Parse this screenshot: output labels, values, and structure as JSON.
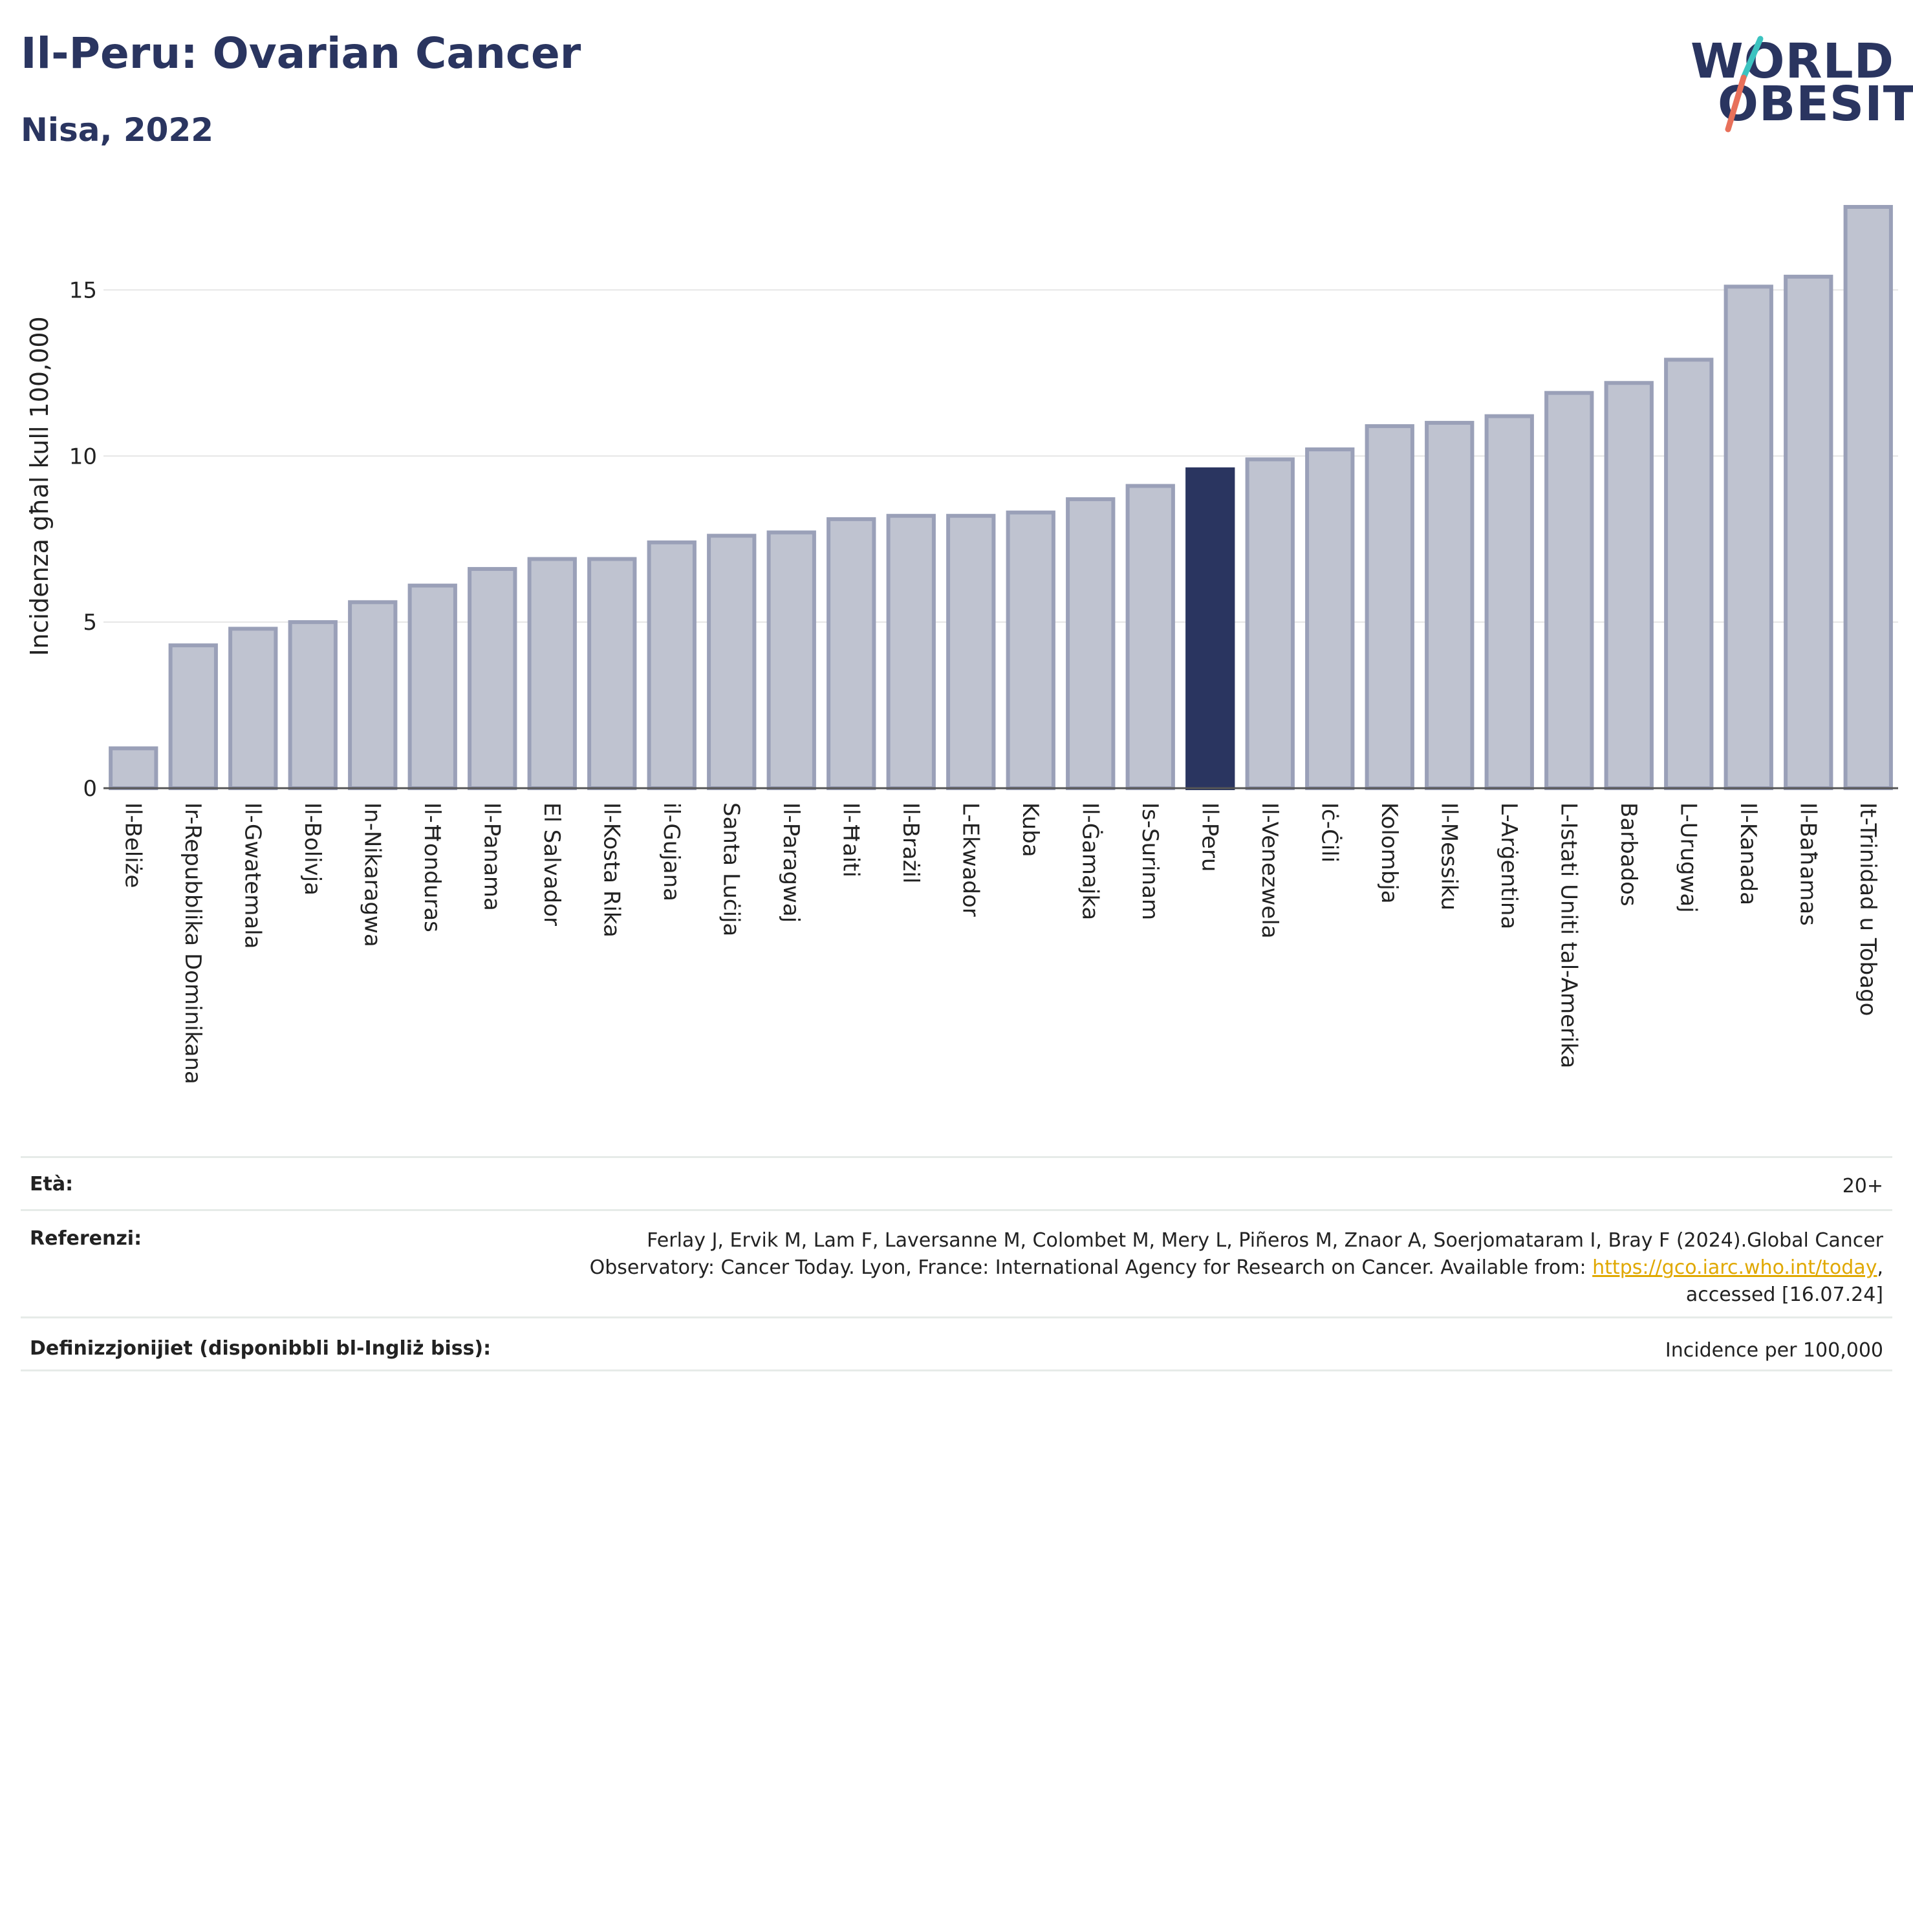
{
  "header": {
    "title": "Il-Peru: Ovarian Cancer",
    "subtitle": "Nisa, 2022"
  },
  "logo": {
    "line1": "WORLD",
    "line2": "OBESITY",
    "slash_colors": [
      "#3cc3c0",
      "#e8705a"
    ]
  },
  "colors": {
    "bar": "#bfc3d0",
    "bar_border": "#9aa0b8",
    "highlight": "#2a3560",
    "text": "#2a3560",
    "link": "#e0a800"
  },
  "chart_data": {
    "type": "bar",
    "ylabel": "Incidenza għal kull 100,000",
    "ylim": [
      0,
      17.5
    ],
    "yticks": [
      0,
      5,
      10,
      15
    ],
    "grid": true,
    "highlight": "Il-Peru",
    "categories": [
      "Il-Beliże",
      "Ir-Repubblika Dominikana",
      "Il-Gwatemala",
      "Il-Bolivja",
      "In-Nikaragwa",
      "Il-Ħonduras",
      "Il-Panama",
      "El Salvador",
      "Il-Kosta Rika",
      "il-Gujana",
      "Santa Luċija",
      "Il-Paragwaj",
      "Il-Ħaiti",
      "Il-Brażil",
      "L-Ekwador",
      "Kuba",
      "Il-Ġamajka",
      "Is-Surinam",
      "Il-Peru",
      "Il-Venezwela",
      "Iċ-Ċili",
      "Kolombja",
      "Il-Messiku",
      "L-Arġentina",
      "L-Istati Uniti tal-Amerika",
      "Barbados",
      "L-Urugwaj",
      "Il-Kanada",
      "Il-Baħamas",
      "It-Trinidad u Tobago"
    ],
    "values": [
      1.2,
      4.3,
      4.8,
      5.0,
      5.6,
      6.1,
      6.6,
      6.9,
      6.9,
      7.4,
      7.6,
      7.7,
      8.1,
      8.2,
      8.2,
      8.3,
      8.7,
      9.1,
      9.6,
      9.9,
      10.2,
      10.9,
      11.0,
      11.2,
      11.9,
      12.2,
      12.9,
      15.1,
      15.4,
      17.5
    ]
  },
  "meta": {
    "age_label": "Età:",
    "age_value": "20+",
    "ref_label": "Referenzi:",
    "ref_line1": "Ferlay J, Ervik M, Lam F, Laversanne M, Colombet M, Mery L, Piñeros M, Znaor A, Soerjomataram I, Bray F (2024).Global Cancer",
    "ref_line2_pre": "Observatory: Cancer Today. Lyon, France: International Agency for Research on Cancer. Available from: ",
    "ref_link": "https://gco.iarc.who.int/today",
    "ref_line2_post": ",",
    "ref_line3": "accessed [16.07.24]",
    "def_label": "Definizzjonijiet (disponibbli bl-Ingliż biss):",
    "def_value": "Incidence per 100,000"
  }
}
